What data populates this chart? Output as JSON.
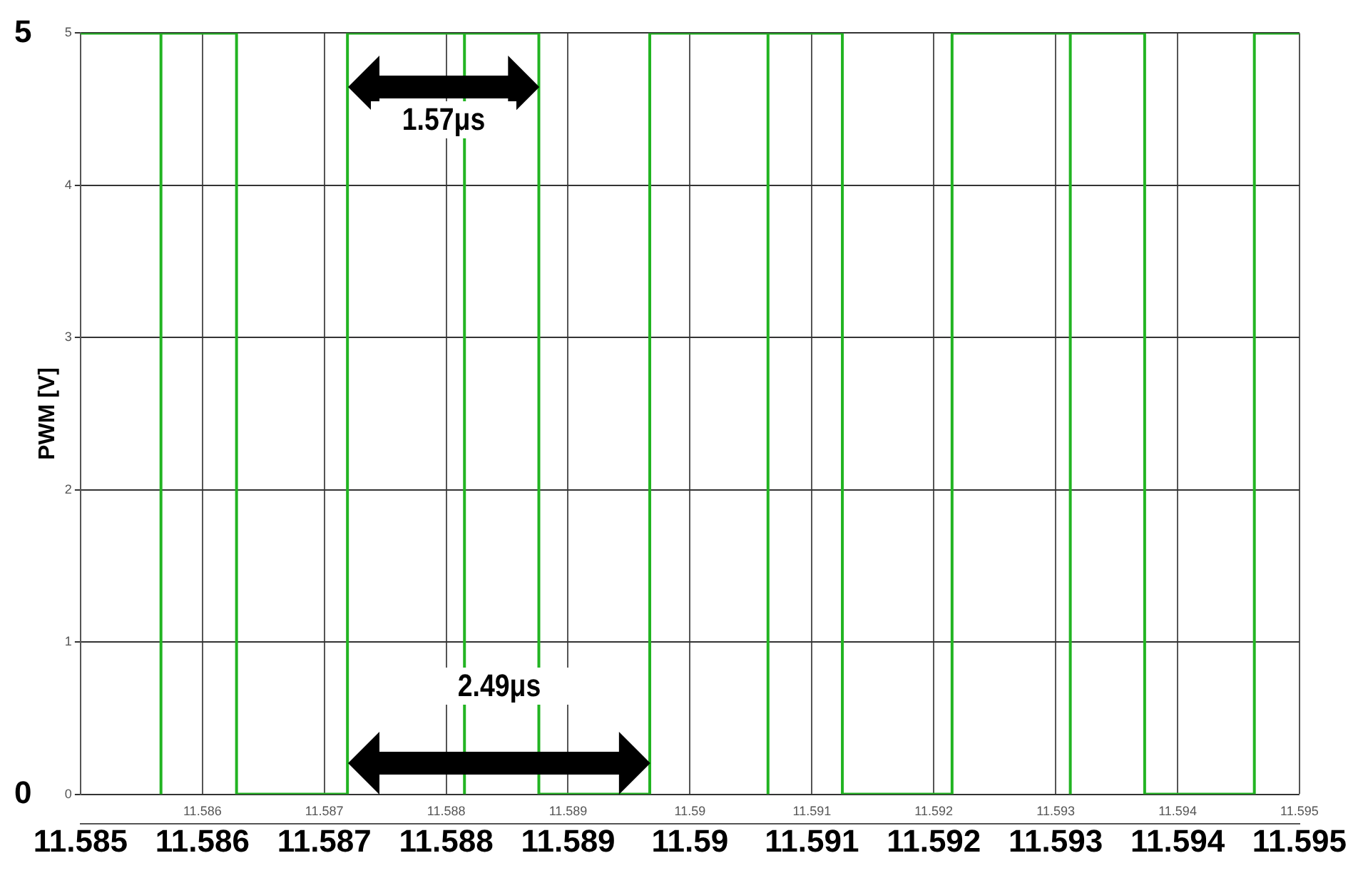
{
  "chart_data": {
    "type": "step",
    "ylabel": "PWM [V]",
    "series": [
      {
        "color": "#22b422",
        "x": [
          11.585,
          11.58566,
          11.58566,
          11.58628,
          11.58719,
          11.58815,
          11.58815,
          11.58876,
          11.58967,
          11.59064,
          11.59064,
          11.59125,
          11.59215,
          11.59312,
          11.59312,
          11.59373,
          11.59463,
          11.595
        ],
        "values": [
          5,
          0,
          5,
          0,
          5,
          0,
          5,
          0,
          5,
          0,
          5,
          0,
          5,
          0,
          5,
          0,
          5,
          5
        ]
      }
    ],
    "xlim": [
      11.585,
      11.595
    ],
    "xticks": [
      11.585,
      11.586,
      11.587,
      11.588,
      11.589,
      11.59,
      11.591,
      11.592,
      11.593,
      11.594,
      11.595
    ],
    "x2lim": [
      11.585,
      11.595
    ],
    "x2ticks": [
      {
        "value": 11.585,
        "label": null
      },
      11.586,
      11.587,
      11.588,
      11.589,
      11.59,
      11.591,
      11.592,
      11.593,
      11.594,
      11.595
    ],
    "ylim": [
      0,
      5
    ],
    "yticks": [
      0,
      1,
      2,
      3,
      4,
      5
    ],
    "y2lim": [
      0,
      5
    ],
    "y2ticks": [
      0,
      5
    ],
    "annotations": [
      "1.57μs",
      "2.49μs"
    ],
    "grid": true,
    "legend": false,
    "marker": "none",
    "line_style": "solid"
  }
}
